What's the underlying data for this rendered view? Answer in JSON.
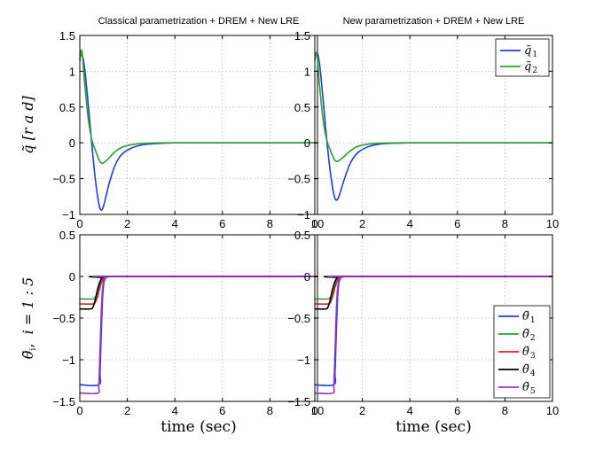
{
  "chart_data": [
    {
      "type": "line",
      "title": "Classical parametrization + DREM + New LRE",
      "xlabel": "",
      "ylabel": "q̃ [rad]",
      "xlim": [
        0,
        10
      ],
      "ylim": [
        -1,
        1.5
      ],
      "xticks": [
        0,
        2,
        4,
        6,
        8,
        10
      ],
      "yticks": [
        -1,
        -0.5,
        0,
        0.5,
        1,
        1.5
      ],
      "ytick_labels": [
        "−1",
        "−0.5",
        "0",
        "0.5",
        "1",
        "1.5"
      ],
      "grid": true,
      "legend": null,
      "series": [
        {
          "name": "q̃ 1",
          "color": "#1f3fd9",
          "x": [
            0,
            0.1,
            0.2,
            0.35,
            0.5,
            0.65,
            0.8,
            0.9,
            1.0,
            1.1,
            1.25,
            1.5,
            1.8,
            2.2,
            2.6,
            3.0,
            3.5,
            4.0,
            5.0,
            6.0,
            8.0,
            10.0
          ],
          "y": [
            1.2,
            1.22,
            1.05,
            0.55,
            0.0,
            -0.5,
            -0.85,
            -0.94,
            -0.88,
            -0.75,
            -0.55,
            -0.3,
            -0.15,
            -0.07,
            -0.03,
            -0.015,
            -0.005,
            0,
            0,
            0,
            0,
            0
          ]
        },
        {
          "name": "q̃ 2",
          "color": "#2ca02c",
          "x": [
            0,
            0.05,
            0.1,
            0.2,
            0.35,
            0.5,
            0.65,
            0.8,
            0.9,
            1.0,
            1.2,
            1.5,
            1.8,
            2.2,
            2.6,
            3.0,
            3.5,
            4.0,
            5.0,
            10.0
          ],
          "y": [
            1.15,
            1.28,
            1.25,
            0.85,
            0.35,
            0.05,
            -0.1,
            -0.23,
            -0.28,
            -0.28,
            -0.22,
            -0.12,
            -0.06,
            -0.025,
            -0.01,
            -0.004,
            0,
            0,
            0,
            0
          ]
        }
      ]
    },
    {
      "type": "line",
      "title": "New parametrization + DREM + New LRE",
      "xlabel": "",
      "ylabel": "",
      "xlim": [
        0,
        10
      ],
      "ylim": [
        -1,
        1.5
      ],
      "xticks": [
        0,
        2,
        4,
        6,
        8,
        10
      ],
      "yticks": [
        -1,
        -0.5,
        0,
        0.5,
        1,
        1.5
      ],
      "ytick_labels": [
        "−1",
        "−0.5",
        "0",
        "0.5",
        "1",
        "1.5"
      ],
      "grid": true,
      "legend": "top-right",
      "series": [
        {
          "name": "q̃ 1",
          "color": "#1f3fd9",
          "x": [
            0,
            0.1,
            0.2,
            0.35,
            0.5,
            0.65,
            0.8,
            0.9,
            1.0,
            1.1,
            1.25,
            1.5,
            1.8,
            2.2,
            2.6,
            3.0,
            3.5,
            4.0,
            5.0,
            6.0,
            8.0,
            10.0
          ],
          "y": [
            1.2,
            1.26,
            1.1,
            0.6,
            0.05,
            -0.4,
            -0.72,
            -0.8,
            -0.76,
            -0.66,
            -0.5,
            -0.28,
            -0.14,
            -0.06,
            -0.025,
            -0.01,
            -0.004,
            0,
            0,
            0,
            0,
            0
          ]
        },
        {
          "name": "q̃ 2",
          "color": "#2ca02c",
          "x": [
            0,
            0.05,
            0.1,
            0.2,
            0.35,
            0.5,
            0.65,
            0.8,
            0.9,
            1.0,
            1.2,
            1.5,
            1.8,
            2.2,
            2.6,
            3.0,
            3.5,
            4.0,
            5.0,
            10.0
          ],
          "y": [
            1.15,
            1.26,
            1.2,
            0.8,
            0.32,
            0.04,
            -0.1,
            -0.22,
            -0.26,
            -0.25,
            -0.2,
            -0.11,
            -0.05,
            -0.02,
            -0.008,
            -0.003,
            0,
            0,
            0,
            0
          ]
        }
      ]
    },
    {
      "type": "line",
      "title": "",
      "xlabel": "time (sec)",
      "ylabel": "θ̃ i,  i = 1 : 5",
      "xlim": [
        0,
        10
      ],
      "ylim": [
        -1.5,
        0.5
      ],
      "xticks": [
        0,
        2,
        4,
        6,
        8,
        10
      ],
      "yticks": [
        -1.5,
        -1,
        -0.5,
        0,
        0.5
      ],
      "ytick_labels": [
        "−1.5",
        "−1",
        "−0.5",
        "0",
        "0.5"
      ],
      "grid": true,
      "legend": null,
      "series": [
        {
          "name": "θ̃ 1",
          "color": "#1f3fd9",
          "x": [
            0,
            0.8,
            0.85,
            0.9,
            0.95,
            1.0,
            1.05,
            1.1,
            1.2,
            1.3,
            10
          ],
          "y": [
            -1.3,
            -1.3,
            -1.15,
            -0.7,
            -0.3,
            -0.1,
            -0.04,
            -0.015,
            -0.004,
            0,
            0
          ]
        },
        {
          "name": "θ̃ 2",
          "color": "#2ca02c",
          "x": [
            0,
            0.55,
            0.65,
            0.75,
            0.85,
            0.95,
            1.05,
            1.2,
            10
          ],
          "y": [
            -0.27,
            -0.27,
            -0.25,
            -0.19,
            -0.1,
            -0.04,
            -0.012,
            0,
            0
          ]
        },
        {
          "name": "θ̃ 3",
          "color": "#e02020",
          "x": [
            0,
            0.55,
            0.65,
            0.75,
            0.85,
            0.95,
            1.05,
            1.2,
            10
          ],
          "y": [
            -0.33,
            -0.33,
            -0.31,
            -0.24,
            -0.13,
            -0.05,
            -0.015,
            0,
            0
          ]
        },
        {
          "name": "θ̃ 4",
          "color": "#000000",
          "x": [
            0,
            0.45,
            0.55,
            0.65,
            0.75,
            0.85,
            0.95,
            1.1,
            10
          ],
          "y": [
            -0.39,
            -0.39,
            -0.37,
            -0.28,
            -0.15,
            -0.06,
            -0.015,
            0,
            0
          ]
        },
        {
          "name": "θ̃ 5",
          "color": "#9932cc",
          "x": [
            0,
            0.75,
            0.8,
            0.85,
            0.9,
            0.95,
            1.0,
            1.05,
            1.15,
            1.25,
            10
          ],
          "y": [
            -1.4,
            -1.4,
            -1.3,
            -0.9,
            -0.45,
            -0.17,
            -0.06,
            -0.02,
            -0.005,
            0,
            0
          ]
        }
      ]
    },
    {
      "type": "line",
      "title": "",
      "xlabel": "time (sec)",
      "ylabel": "",
      "xlim": [
        0,
        10
      ],
      "ylim": [
        -1.5,
        0.5
      ],
      "xticks": [
        0,
        2,
        4,
        6,
        8,
        10
      ],
      "yticks": [
        -1.5,
        -1,
        -0.5,
        0,
        0.5
      ],
      "ytick_labels": [
        "−1.5",
        "−1",
        "−0.5",
        "0",
        "0.5"
      ],
      "grid": true,
      "legend": "bottom-right",
      "series": [
        {
          "name": "θ̃ 1",
          "color": "#1f3fd9",
          "x": [
            0,
            0.8,
            0.85,
            0.9,
            0.95,
            1.0,
            1.05,
            1.1,
            1.2,
            1.3,
            10
          ],
          "y": [
            -1.3,
            -1.3,
            -1.15,
            -0.7,
            -0.3,
            -0.1,
            -0.04,
            -0.015,
            -0.004,
            0,
            0
          ]
        },
        {
          "name": "θ̃ 2",
          "color": "#2ca02c",
          "x": [
            0,
            0.55,
            0.65,
            0.75,
            0.85,
            0.95,
            1.05,
            1.2,
            10
          ],
          "y": [
            -0.27,
            -0.27,
            -0.25,
            -0.19,
            -0.1,
            -0.04,
            -0.012,
            0,
            0
          ]
        },
        {
          "name": "θ̃ 3",
          "color": "#e02020",
          "x": [
            0,
            0.55,
            0.65,
            0.75,
            0.85,
            0.95,
            1.05,
            1.2,
            10
          ],
          "y": [
            -0.33,
            -0.33,
            -0.31,
            -0.24,
            -0.13,
            -0.05,
            -0.015,
            0,
            0
          ]
        },
        {
          "name": "θ̃ 4",
          "color": "#000000",
          "x": [
            0,
            0.45,
            0.55,
            0.65,
            0.75,
            0.85,
            0.95,
            1.1,
            10
          ],
          "y": [
            -0.39,
            -0.39,
            -0.37,
            -0.28,
            -0.15,
            -0.06,
            -0.015,
            0,
            0
          ]
        },
        {
          "name": "θ̃ 5",
          "color": "#9932cc",
          "x": [
            0,
            0.75,
            0.8,
            0.85,
            0.9,
            0.95,
            1.0,
            1.05,
            1.15,
            1.25,
            10
          ],
          "y": [
            -1.4,
            -1.4,
            -1.3,
            -0.9,
            -0.45,
            -0.17,
            -0.06,
            -0.02,
            -0.005,
            0,
            0
          ]
        }
      ]
    }
  ]
}
